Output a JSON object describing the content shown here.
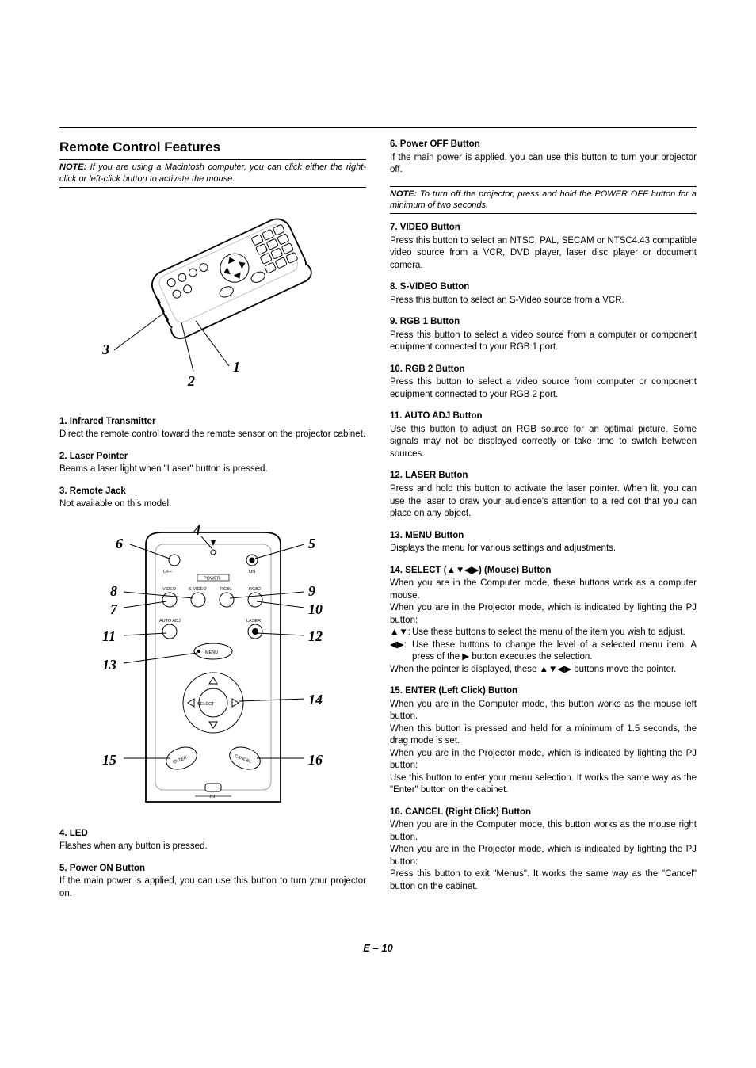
{
  "title": "Remote Control Features",
  "note1": "If you are using a Macintosh computer, you can click either the right-click or left-click button to activate the mouse.",
  "note_label": "NOTE:",
  "diagram1": {
    "callouts": {
      "n1": "1",
      "n2": "2",
      "n3": "3"
    },
    "labels": {
      "off": "OFF",
      "on": "ON",
      "power": "POWER",
      "video": "VIDEO",
      "svideo": "S-VIDEO",
      "rgb1": "RGB1",
      "rgb2": "RGB2",
      "autoadj": "AUTO ADJ.",
      "laser": "LASER",
      "menu": "MENU",
      "select": "SELECT",
      "enter": "ENTER",
      "cancel": "CANCEL",
      "pj": "PJ"
    }
  },
  "diagram2": {
    "callouts": {
      "n4": "4",
      "n5": "5",
      "n6": "6",
      "n7": "7",
      "n8": "8",
      "n9": "9",
      "n10": "10",
      "n11": "11",
      "n12": "12",
      "n13": "13",
      "n14": "14",
      "n15": "15",
      "n16": "16"
    }
  },
  "left_sections": [
    {
      "heading": "1. Infrared Transmitter",
      "body": "Direct the remote control toward the remote sensor on the projector cabinet."
    },
    {
      "heading": "2. Laser Pointer",
      "body": "Beams a laser light when \"Laser\" button is pressed."
    },
    {
      "heading": "3. Remote Jack",
      "body": "Not available on this model."
    }
  ],
  "left_sections_after": [
    {
      "heading": "4. LED",
      "body": "Flashes when any button is pressed."
    },
    {
      "heading": "5. Power ON Button",
      "body": "If the main power is applied, you can use this button to turn your projector on."
    }
  ],
  "right_sections_pre": {
    "heading": "6. Power OFF Button",
    "body": "If the main power is applied, you can use this button to turn your projector off."
  },
  "note2": "To turn off the projector, press and hold the POWER OFF button for a minimum of two seconds.",
  "right_sections": [
    {
      "heading": "7. VIDEO Button",
      "body": "Press this button to select an NTSC, PAL, SECAM or NTSC4.43 compatible video source from a VCR, DVD player, laser disc player or document camera."
    },
    {
      "heading": "8. S-VIDEO Button",
      "body": "Press this button to select an S-Video source from a VCR."
    },
    {
      "heading": "9. RGB 1 Button",
      "body": "Press this button to select a video source from a computer or component equipment connected to your RGB 1 port."
    },
    {
      "heading": "10. RGB 2 Button",
      "body": "Press this button to select a video source from computer or component equipment connected to your RGB 2 port."
    },
    {
      "heading": "11. AUTO ADJ Button",
      "body": "Use this button to adjust an RGB source for an optimal picture. Some signals may not be displayed correctly or take time to switch between sources."
    },
    {
      "heading": "12. LASER Button",
      "body": "Press and hold this button to activate the laser pointer. When lit, you can use the laser to draw your audience's attention to a red dot that you can place on any object."
    },
    {
      "heading": "13. MENU Button",
      "body": "Displays the menu for various settings and adjustments."
    }
  ],
  "section14": {
    "heading": "14. SELECT (▲▼◀▶) (Mouse) Button",
    "p1": "When you are in the Computer mode, these buttons work as a computer mouse.",
    "p2": "When you are in the Projector mode, which is indicated by lighting the PJ button:",
    "row1_sym": "▲▼:",
    "row1_txt": "Use these buttons to select the menu of the item you wish to adjust.",
    "row2_sym": "◀▶:",
    "row2_txt": "Use these buttons to change the level of a selected menu item. A press of the ▶ button executes the selection.",
    "p3": "When the pointer is displayed, these ▲▼◀▶ buttons move the pointer."
  },
  "section15": {
    "heading": "15. ENTER (Left Click) Button",
    "p1": "When you are in the Computer mode, this button works as the mouse left button.",
    "p2": "When this button is pressed and held for a minimum of 1.5 seconds, the drag mode is set.",
    "p3": "When you are in the Projector mode, which is indicated by lighting the PJ button:",
    "p4": "Use this button to enter your menu selection. It works the same way as the \"Enter\" button on the cabinet."
  },
  "section16": {
    "heading": "16. CANCEL (Right Click) Button",
    "p1": "When you are in the Computer mode, this button works as the mouse right button.",
    "p2": "When you are in the Projector mode, which is indicated by lighting the PJ button:",
    "p3": "Press this button to exit \"Menus\". It works the same way as the \"Cancel\" button on the cabinet."
  },
  "page_footer": "E – 10"
}
